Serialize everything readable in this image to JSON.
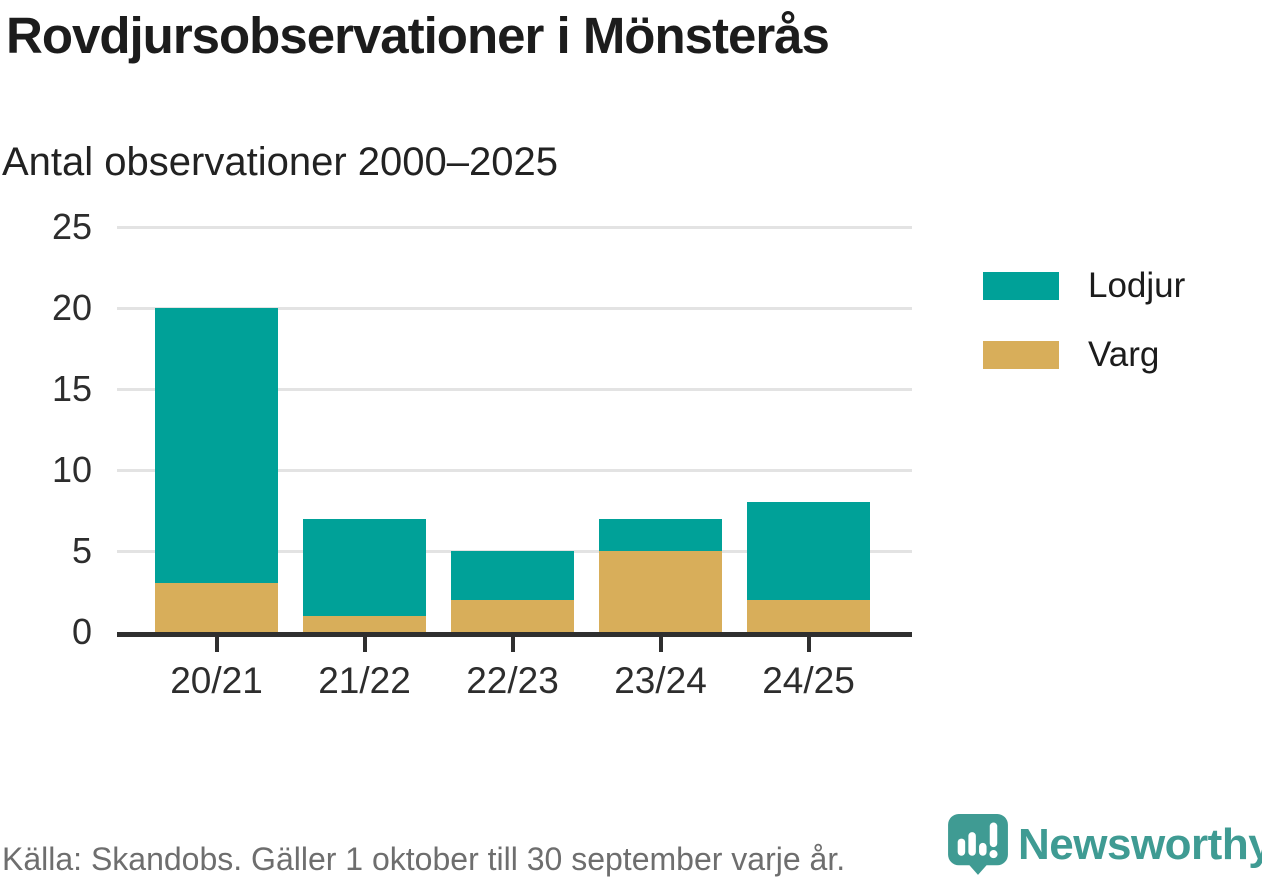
{
  "header": {
    "title": "Rovdjursobservationer i Mönsterås",
    "subtitle": "Antal observationer 2000–2025"
  },
  "chart_data": {
    "type": "bar",
    "stacked": true,
    "title": "Rovdjursobservationer i Mönsterås",
    "subtitle": "Antal observationer 2000–2025",
    "categories": [
      "20/21",
      "21/22",
      "22/23",
      "23/24",
      "24/25"
    ],
    "series": [
      {
        "name": "Lodjur",
        "color": "#00a198",
        "values": [
          17,
          6,
          3,
          2,
          6
        ]
      },
      {
        "name": "Varg",
        "color": "#d8ae5a",
        "values": [
          3,
          1,
          2,
          5,
          2
        ]
      }
    ],
    "stack_totals": [
      20,
      7,
      5,
      7,
      8
    ],
    "xlabel": "",
    "ylabel": "",
    "ylim": [
      0,
      25
    ],
    "yticks": [
      0,
      5,
      10,
      15,
      20,
      25
    ],
    "grid": true,
    "legend_position": "right"
  },
  "footer": {
    "source": "Källa: Skandobs. Gäller 1 oktober till 30 september varje år.",
    "brand": "Newsworthy"
  },
  "colors": {
    "lodjur": "#00a198",
    "varg": "#d8ae5a",
    "brand_teal": "#3f9b93",
    "gridline": "#e3e3e3",
    "axis": "#2f2f2f",
    "text": "#1c1c1c",
    "muted": "#6e6e6e"
  }
}
